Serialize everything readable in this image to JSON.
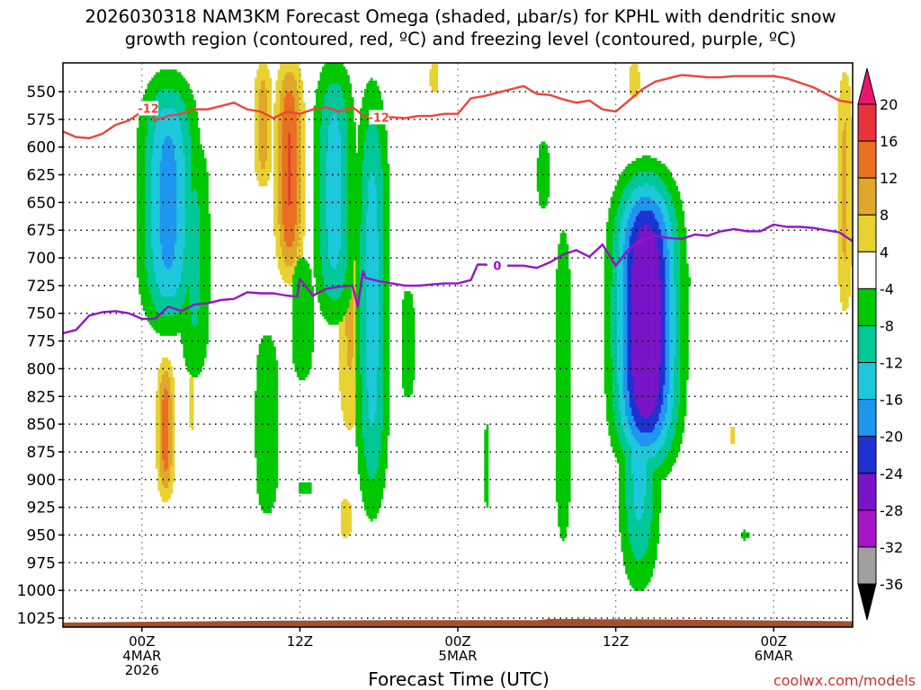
{
  "chart_data": {
    "type": "heatmap",
    "title": {
      "line1": "2026030318 NAM3KM Forecast Omega (shaded, μbar/s) for KPHL with dendritic snow",
      "line2": "growth region (contoured, red, ºC) and freezing level (contoured, purple, ºC)"
    },
    "xlabel": "Forecast Time (UTC)",
    "credit": "coolwx.com/models",
    "x_range_hours": [
      -6,
      54
    ],
    "x_ticks": [
      {
        "h": 0,
        "label": "00Z",
        "sub1": "4MAR",
        "sub2": "2026"
      },
      {
        "h": 12,
        "label": "12Z",
        "sub1": "",
        "sub2": ""
      },
      {
        "h": 24,
        "label": "00Z",
        "sub1": "5MAR",
        "sub2": ""
      },
      {
        "h": 36,
        "label": "12Z",
        "sub1": "",
        "sub2": ""
      },
      {
        "h": 48,
        "label": "00Z",
        "sub1": "6MAR",
        "sub2": ""
      }
    ],
    "y_levels": [
      "550",
      "575",
      "600",
      "625",
      "650",
      "675",
      "700",
      "725",
      "750",
      "775",
      "800",
      "825",
      "850",
      "875",
      "900",
      "925",
      "950",
      "975",
      "1000",
      "1025"
    ],
    "colorbar": {
      "top_label": "20",
      "bottom_label": "-36",
      "tick_labels": [
        "16",
        "12",
        "8",
        "4",
        "-4",
        "-8",
        "-12",
        "-16",
        "-20",
        "-24",
        "-28",
        "-32"
      ],
      "colors": [
        "#e8176e",
        "#e8323c",
        "#e87020",
        "#dfa82a",
        "#e8d232",
        "#ffffff",
        "#00c800",
        "#00c896",
        "#1ec8dc",
        "#1e96f0",
        "#1e32d2",
        "#7a14c8",
        "#a814c8",
        "#a0a0a0",
        "#000000"
      ]
    },
    "contours": {
      "dgz_minus12": {
        "label": "-12",
        "color": "#e8463c",
        "points": [
          [
            -6,
            586
          ],
          [
            -5,
            591
          ],
          [
            -4,
            592
          ],
          [
            -3,
            588
          ],
          [
            -2,
            580
          ],
          [
            -1,
            576
          ],
          [
            0,
            568
          ],
          [
            0.5,
            565
          ],
          [
            1,
            576
          ],
          [
            2,
            572
          ],
          [
            3,
            570
          ],
          [
            4,
            566
          ],
          [
            5,
            566
          ],
          [
            6,
            563
          ],
          [
            7,
            560
          ],
          [
            8,
            566
          ],
          [
            9,
            568
          ],
          [
            10,
            574
          ],
          [
            11,
            568
          ],
          [
            12,
            570
          ],
          [
            13,
            566
          ],
          [
            14,
            564
          ],
          [
            15,
            568
          ],
          [
            16,
            564
          ],
          [
            17,
            573
          ],
          [
            18,
            573
          ],
          [
            19,
            573
          ],
          [
            20,
            574
          ],
          [
            21,
            572
          ],
          [
            22,
            572
          ],
          [
            23,
            570
          ],
          [
            24,
            570
          ],
          [
            25,
            556
          ],
          [
            26,
            554
          ],
          [
            27,
            551
          ],
          [
            28,
            548
          ],
          [
            29,
            545
          ],
          [
            30,
            552
          ],
          [
            31,
            553
          ],
          [
            32,
            557
          ],
          [
            33,
            560
          ],
          [
            34,
            558
          ],
          [
            35,
            566
          ],
          [
            36,
            568
          ],
          [
            37,
            558
          ],
          [
            38,
            548
          ],
          [
            39,
            541
          ],
          [
            40,
            538
          ],
          [
            41,
            535
          ],
          [
            42,
            536
          ],
          [
            43,
            537
          ],
          [
            44,
            537
          ],
          [
            45,
            536
          ],
          [
            46,
            536
          ],
          [
            47,
            536
          ],
          [
            48,
            536
          ],
          [
            49,
            538
          ],
          [
            50,
            542
          ],
          [
            51,
            546
          ],
          [
            52,
            552
          ],
          [
            53,
            558
          ],
          [
            54,
            560
          ]
        ]
      },
      "freezing_level": {
        "label": "0",
        "color": "#9614c8",
        "points": [
          [
            -6,
            768
          ],
          [
            -5,
            765
          ],
          [
            -4,
            752
          ],
          [
            -3,
            749
          ],
          [
            -2,
            748
          ],
          [
            -1,
            750
          ],
          [
            0,
            755
          ],
          [
            1,
            755
          ],
          [
            2,
            744
          ],
          [
            3,
            748
          ],
          [
            4,
            742
          ],
          [
            5,
            741
          ],
          [
            6,
            738
          ],
          [
            7,
            737
          ],
          [
            8,
            731
          ],
          [
            9,
            732
          ],
          [
            10,
            732
          ],
          [
            11,
            734
          ],
          [
            11.8,
            735
          ],
          [
            12,
            719
          ],
          [
            13,
            734
          ],
          [
            14,
            728
          ],
          [
            15,
            726
          ],
          [
            16,
            725
          ],
          [
            16.4,
            744
          ],
          [
            16.8,
            712
          ],
          [
            17,
            718
          ],
          [
            18,
            721
          ],
          [
            19,
            723
          ],
          [
            20,
            725
          ],
          [
            21,
            725
          ],
          [
            22,
            724
          ],
          [
            23,
            723
          ],
          [
            24,
            723
          ],
          [
            25,
            720
          ],
          [
            25.5,
            706
          ],
          [
            26,
            706
          ],
          [
            27,
            707
          ],
          [
            28,
            707
          ],
          [
            29,
            707
          ],
          [
            30,
            709
          ],
          [
            31,
            704
          ],
          [
            32,
            697
          ],
          [
            33,
            693
          ],
          [
            34,
            699
          ],
          [
            35,
            688
          ],
          [
            36,
            707
          ],
          [
            37,
            692
          ],
          [
            38,
            684
          ],
          [
            39,
            680
          ],
          [
            40,
            682
          ],
          [
            41,
            683
          ],
          [
            42,
            679
          ],
          [
            43,
            680
          ],
          [
            44,
            676
          ],
          [
            45,
            674
          ],
          [
            46,
            676
          ],
          [
            47,
            676
          ],
          [
            48,
            670
          ],
          [
            49,
            672
          ],
          [
            50,
            672
          ],
          [
            51,
            673
          ],
          [
            52,
            675
          ],
          [
            53,
            677
          ],
          [
            54,
            685
          ]
        ]
      }
    },
    "omega_blobs": [
      {
        "t": 2,
        "p0": 535,
        "p1": 765,
        "w": 2.2,
        "min": -14
      },
      {
        "t": 4,
        "p0": 580,
        "p1": 820,
        "w": 1.4,
        "min": -7
      },
      {
        "t": 14.6,
        "p0": 520,
        "p1": 760,
        "w": 1.6,
        "min": -11
      },
      {
        "t": 17.5,
        "p0": 540,
        "p1": 935,
        "w": 1.3,
        "min": -11
      },
      {
        "t": 20.2,
        "p0": 715,
        "p1": 840,
        "w": 0.8,
        "min": -5
      },
      {
        "t": 38.3,
        "p0": 625,
        "p1": 890,
        "w": 2.5,
        "min": -24
      },
      {
        "t": 37.8,
        "p0": 700,
        "p1": 1000,
        "w": 1.6,
        "min": -11
      },
      {
        "t": 32,
        "p0": 650,
        "p1": 980,
        "w": 0.8,
        "min": -6
      },
      {
        "t": 30.5,
        "p0": 590,
        "p1": 660,
        "w": 0.6,
        "min": -6
      },
      {
        "t": 9.5,
        "p0": 755,
        "p1": 945,
        "w": 1.2,
        "min": -6
      },
      {
        "t": 12.2,
        "p0": 690,
        "p1": 820,
        "w": 1.1,
        "min": -6
      },
      {
        "t": 45.8,
        "p0": 945,
        "p1": 955,
        "w": 0.5,
        "min": -5
      },
      {
        "t": 41.5,
        "p0": 715,
        "p1": 728,
        "w": 0.3,
        "min": -5
      },
      {
        "t": 26.2,
        "p0": 840,
        "p1": 935,
        "w": 0.3,
        "min": -5
      },
      {
        "t": 12.4,
        "p0": 900,
        "p1": 915,
        "w": 0.8,
        "min": -5
      }
    ]
  }
}
